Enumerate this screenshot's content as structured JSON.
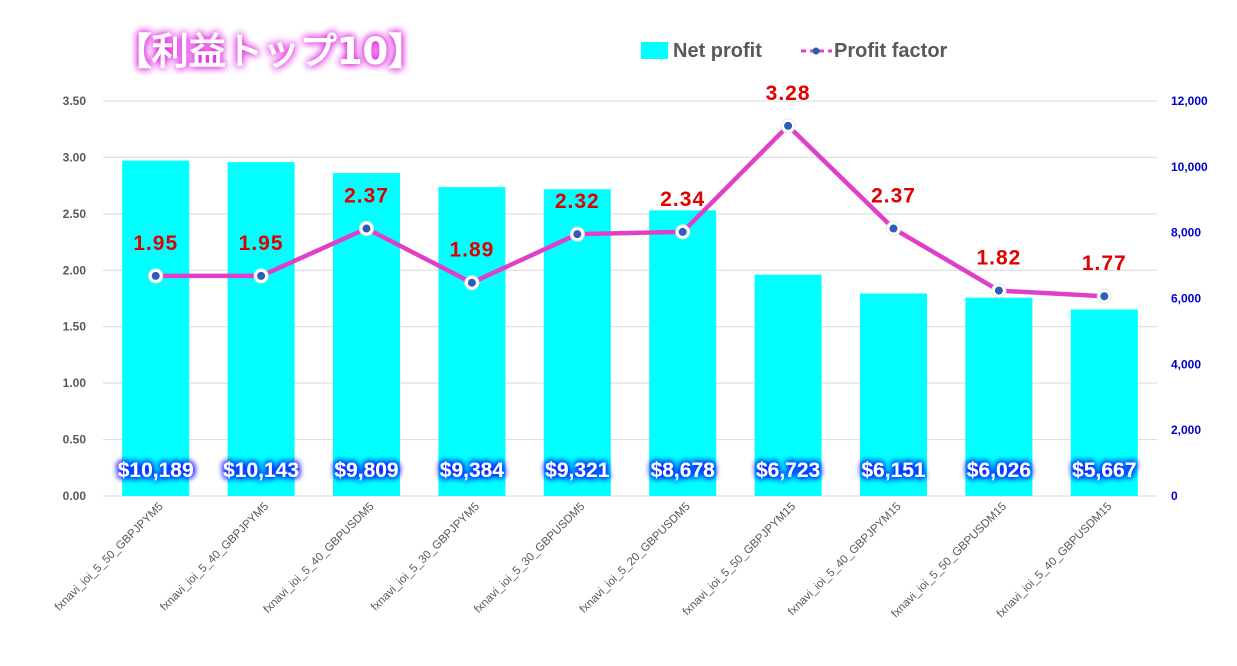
{
  "chart_data": {
    "type": "bar",
    "title": "【利益トップ10】",
    "categories": [
      "fxnavi_ioi_5_50_GBPJPYM5",
      "fxnavi_ioi_5_40_GBPJPYM5",
      "fxnavi_ioi_5_40_GBPUSDM5",
      "fxnavi_ioi_5_30_GBPJPYM5",
      "fxnavi_ioi_5_30_GBPUSDM5",
      "fxnavi_ioi_5_20_GBPUSDM5",
      "fxnavi_ioi_5_50_GBPJPYM15",
      "fxnavi_ioi_5_40_GBPJPYM15",
      "fxnavi_ioi_5_50_GBPUSDM15",
      "fxnavi_ioi_5_40_GBPUSDM15"
    ],
    "series": [
      {
        "name": "Net profit",
        "type": "bar",
        "axis": "right",
        "color": "#00FFFF",
        "values": [
          10189,
          10143,
          9809,
          9384,
          9321,
          8678,
          6723,
          6151,
          6026,
          5667
        ],
        "labels": [
          "$10,189",
          "$10,143",
          "$9,809",
          "$9,384",
          "$9,321",
          "$8,678",
          "$6,723",
          "$6,151",
          "$6,026",
          "$5,667"
        ]
      },
      {
        "name": "Profit factor",
        "type": "line",
        "axis": "left",
        "color": "#E040C8",
        "marker_color": "#2E5CB8",
        "values": [
          1.95,
          1.95,
          2.37,
          1.89,
          2.32,
          2.34,
          3.28,
          2.37,
          1.82,
          1.77
        ],
        "labels": [
          "1.95",
          "1.95",
          "2.37",
          "1.89",
          "2.32",
          "2.34",
          "3.28",
          "2.37",
          "1.82",
          "1.77"
        ]
      }
    ],
    "y_left": {
      "ylim": [
        0,
        3.5
      ],
      "ticks": [
        "0.00",
        "0.50",
        "1.00",
        "1.50",
        "2.00",
        "2.50",
        "3.00",
        "3.50"
      ]
    },
    "y_right": {
      "ylim": [
        0,
        12000
      ],
      "ticks": [
        "0",
        "2,000",
        "4,000",
        "6,000",
        "8,000",
        "10,000",
        "12,000"
      ],
      "color": "#0000CC"
    },
    "grid": true,
    "legend_position": "top-right",
    "xlabel": "",
    "ylabel": ""
  }
}
